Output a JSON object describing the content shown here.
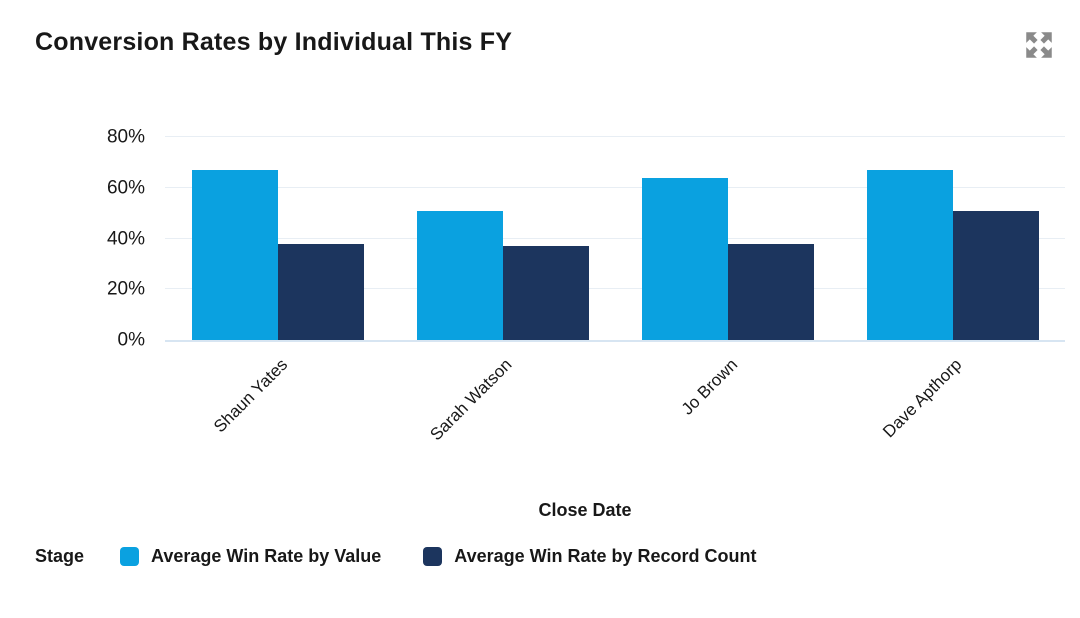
{
  "header": {
    "title": "Conversion Rates by Individual This FY"
  },
  "chart_data": {
    "type": "bar",
    "title": "Conversion Rates by Individual This FY",
    "categories": [
      "Shaun Yates",
      "Sarah Watson",
      "Jo Brown",
      "Dave Apthorp"
    ],
    "series": [
      {
        "name": "Average Win Rate by Value",
        "color": "#0AA1E0",
        "values": [
          67,
          51,
          64,
          67
        ]
      },
      {
        "name": "Average Win Rate by Record Count",
        "color": "#1C355E",
        "values": [
          38,
          37,
          38,
          51
        ]
      }
    ],
    "xlabel": "Close Date",
    "ylabel": "",
    "unit": "%",
    "ylim": [
      0,
      80
    ],
    "y_ticks": [
      "0%",
      "20%",
      "40%",
      "60%",
      "80%"
    ],
    "grid": true,
    "x_tick_rotation": -45,
    "legend_title": "Stage",
    "legend_position": "bottom"
  },
  "icons": {
    "expand": "expand-icon"
  },
  "styles": {
    "background": "#FFFFFF",
    "text_color": "#181818",
    "gridline_color": "#E8EEF4",
    "axis_line_color": "#D7E5F2",
    "icon_color": "#8A8A8A"
  }
}
